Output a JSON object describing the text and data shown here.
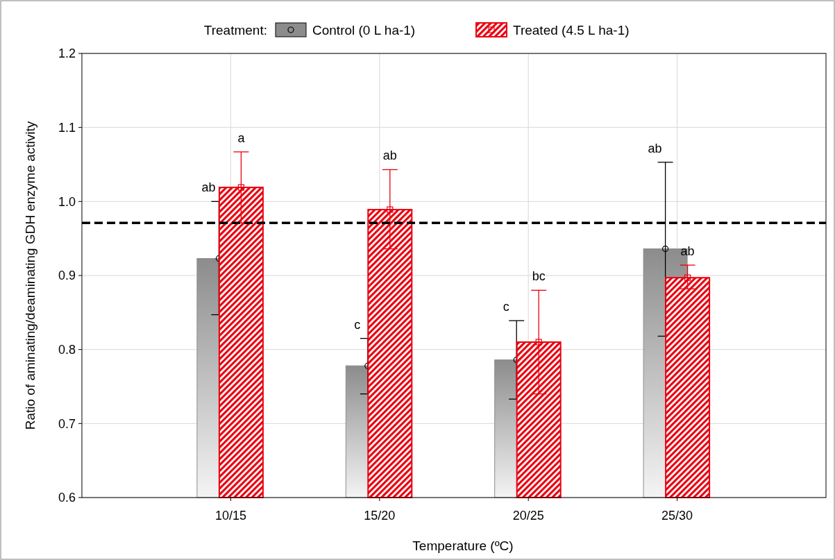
{
  "chart_data": {
    "type": "bar",
    "xlabel": "Temperature (ºC)",
    "ylabel": "Ratio of aminating/deaminating GDH enzyme activity",
    "legend_title": "Treatment:",
    "categories": [
      "10/15",
      "15/20",
      "20/25",
      "25/30"
    ],
    "series": [
      {
        "name": "Control (0 L ha-1)",
        "color": "#8c8c8c",
        "marker": "circle",
        "values": [
          0.923,
          0.778,
          0.786,
          0.936
        ],
        "errors": [
          [
            0.847,
            1.0
          ],
          [
            0.74,
            0.815
          ],
          [
            0.733,
            0.839
          ],
          [
            0.818,
            1.053
          ]
        ]
      },
      {
        "name": "Treated (4.5 L ha-1)",
        "color": "#e8000f",
        "marker": "square",
        "values": [
          1.019,
          0.989,
          0.81,
          0.897
        ],
        "errors": [
          [
            0.971,
            1.067
          ],
          [
            0.936,
            1.043
          ],
          [
            0.74,
            0.88
          ],
          [
            0.882,
            0.914
          ]
        ]
      }
    ],
    "annotations": [
      "ab",
      "a",
      "c",
      "ab",
      "c",
      "bc",
      "ab",
      "ab"
    ],
    "ylim": [
      0.6,
      1.2
    ],
    "yticks": [
      {
        "value": 0.6,
        "label": "0.6"
      },
      {
        "value": 0.7,
        "label": "0.7"
      },
      {
        "value": 0.8,
        "label": "0.8"
      },
      {
        "value": 0.9,
        "label": "0.9"
      },
      {
        "value": 1.0,
        "label": "1.0"
      },
      {
        "value": 1.1,
        "label": "1.1"
      },
      {
        "value": 1.2,
        "label": "1.2"
      }
    ],
    "ref_lines": [
      {
        "axis": "y",
        "value": 0.971,
        "color": "#000000",
        "line_style": "dashed"
      }
    ],
    "grid": true,
    "legend": "top"
  }
}
